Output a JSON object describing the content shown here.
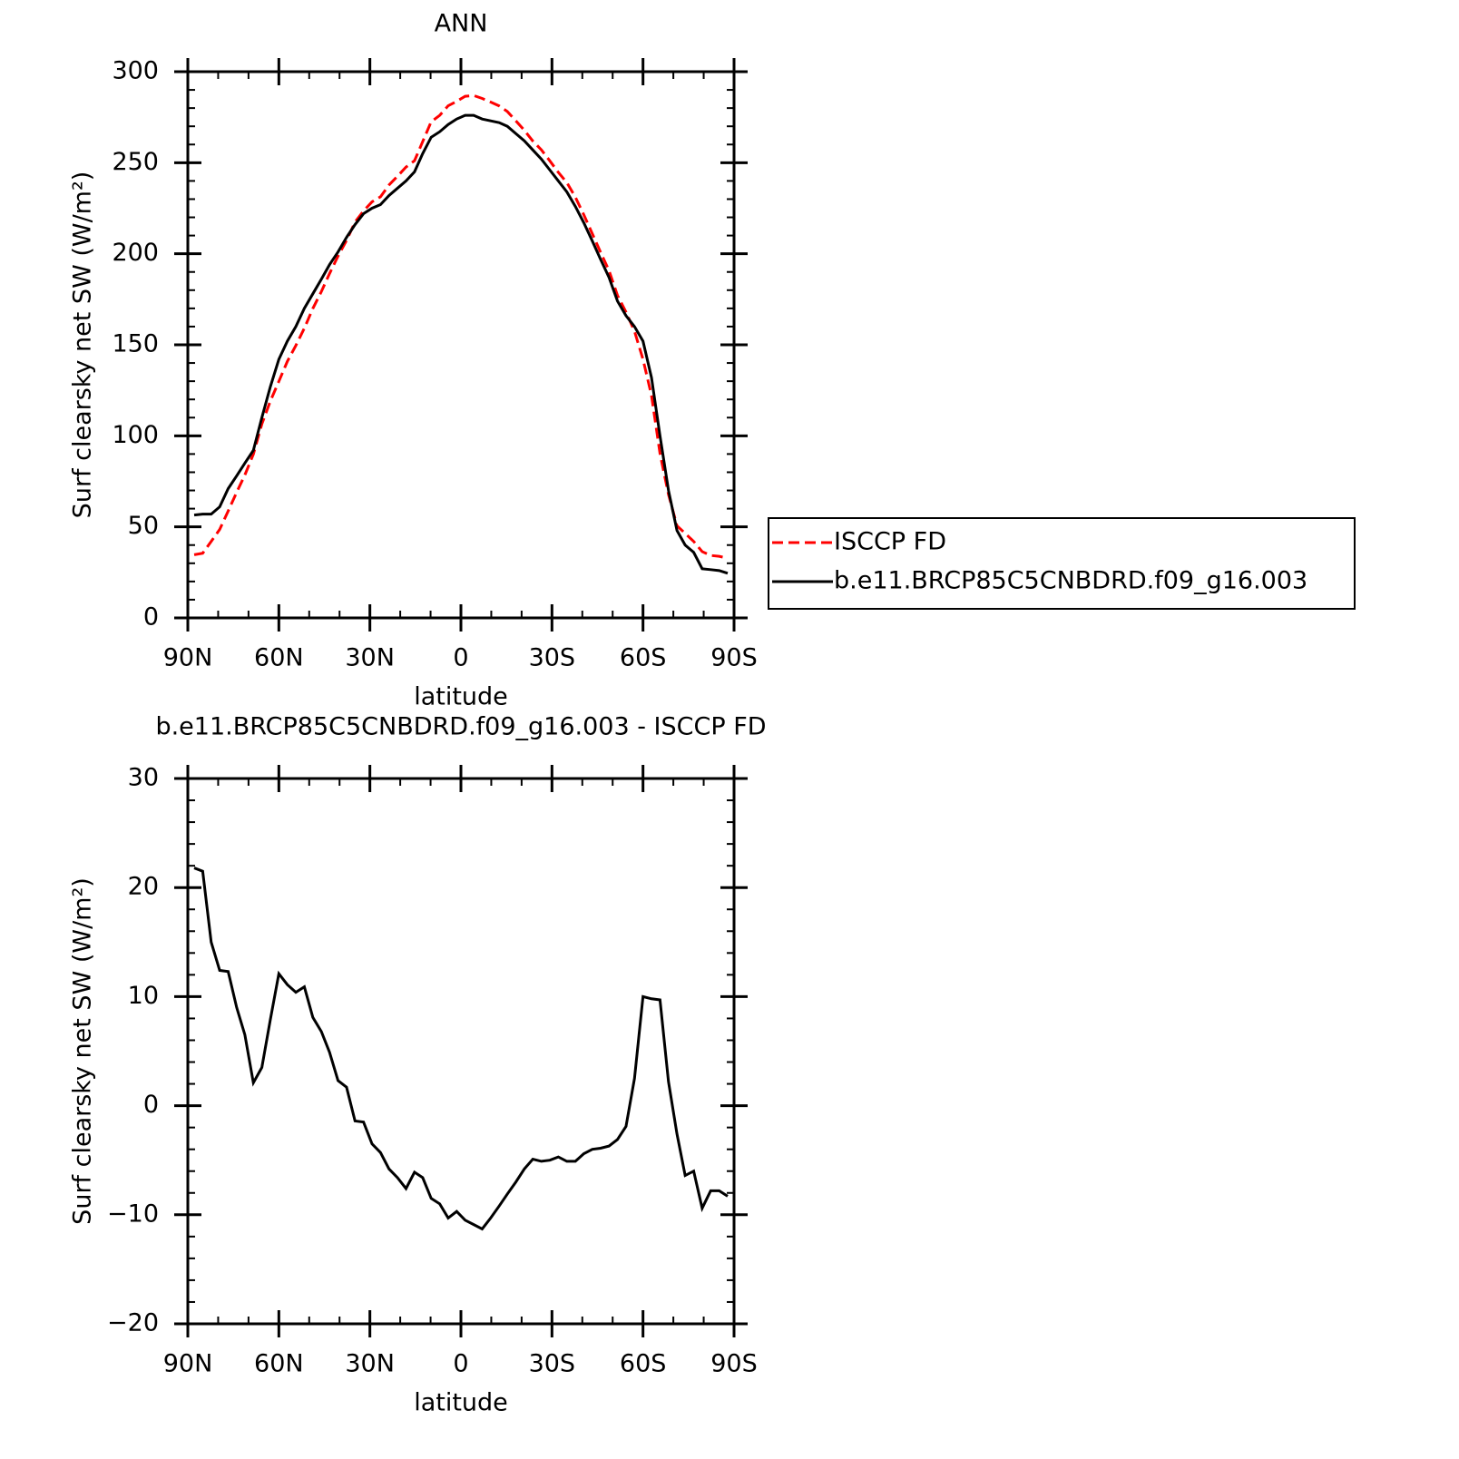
{
  "chart_data": [
    {
      "type": "line",
      "title": "ANN",
      "xlabel": "latitude",
      "ylabel": "Surf clearsky net SW (W/m²)",
      "x": [
        87.9,
        85.1,
        82.3,
        79.5,
        76.7,
        73.9,
        71.2,
        68.4,
        65.6,
        62.8,
        60.0,
        57.2,
        54.4,
        51.6,
        48.8,
        46.0,
        43.3,
        40.5,
        37.7,
        34.9,
        32.1,
        29.3,
        26.5,
        23.7,
        20.9,
        18.1,
        15.3,
        12.6,
        9.8,
        7.0,
        4.2,
        1.4,
        -1.4,
        -4.2,
        -7.0,
        -9.8,
        -12.6,
        -15.3,
        -18.1,
        -20.9,
        -23.7,
        -26.5,
        -29.3,
        -32.1,
        -34.9,
        -37.7,
        -40.5,
        -43.3,
        -46.0,
        -48.8,
        -51.6,
        -54.4,
        -57.2,
        -60.0,
        -62.8,
        -65.6,
        -68.4,
        -71.2,
        -73.9,
        -76.7,
        -79.5,
        -82.3,
        -85.1,
        -87.9
      ],
      "series": [
        {
          "name": "ISCCP FD",
          "color": "#ff0000",
          "line_style": "dashed",
          "values": [
            34.7,
            35.5,
            42,
            48.6,
            58.7,
            69,
            78.5,
            89.9,
            106.5,
            119.1,
            129.9,
            140.9,
            149.6,
            159.1,
            169.9,
            179.2,
            189.1,
            198.7,
            207.3,
            217.4,
            223.5,
            228.5,
            231.3,
            237.8,
            242.6,
            247.6,
            251.1,
            261.6,
            272.5,
            276,
            281.3,
            283.7,
            286.5,
            286.9,
            285.3,
            283.3,
            281.2,
            278.1,
            273,
            267.8,
            261.9,
            257.1,
            251,
            244.7,
            239.1,
            231.1,
            221.4,
            211,
            200.9,
            190.7,
            177.1,
            167.9,
            157.5,
            142,
            122.2,
            90.3,
            67.8,
            50.6,
            46.4,
            42,
            36.4,
            34.3,
            33.8,
            32.8
          ]
        },
        {
          "name": "b.e11.BRCP85C5CNBDRD.f09_g16.003",
          "color": "#000000",
          "line_style": "solid",
          "values": [
            56.5,
            57,
            57,
            61,
            71,
            78,
            85,
            92,
            110,
            127,
            142,
            152,
            160,
            170,
            178,
            186,
            194,
            201,
            209,
            216,
            222,
            225,
            227,
            232,
            236,
            240,
            245,
            255,
            264,
            267,
            271,
            274,
            276,
            276,
            274,
            273,
            272,
            270,
            266,
            262,
            257,
            252,
            246,
            240,
            234,
            226,
            217,
            207,
            197,
            187,
            174,
            166,
            160,
            152,
            132,
            100,
            70,
            48,
            40,
            36,
            27,
            26.5,
            26,
            24.5
          ]
        }
      ],
      "xlim": [
        90,
        -90
      ],
      "xticks": [
        {
          "value": 90,
          "label": "90N"
        },
        {
          "value": 60,
          "label": "60N"
        },
        {
          "value": 30,
          "label": "30N"
        },
        0,
        {
          "value": -30,
          "label": "30S"
        },
        {
          "value": -60,
          "label": "60S"
        },
        {
          "value": -90,
          "label": "90S"
        }
      ],
      "ylim": [
        0,
        300
      ],
      "yticks": [
        0,
        50,
        100,
        150,
        200,
        250,
        300
      ],
      "legend": "right"
    },
    {
      "type": "line",
      "title": "b.e11.BRCP85C5CNBDRD.f09_g16.003 - ISCCP FD",
      "xlabel": "latitude",
      "ylabel": "Surf clearsky net SW (W/m²)",
      "x": [
        87.9,
        85.1,
        82.3,
        79.5,
        76.7,
        73.9,
        71.2,
        68.4,
        65.6,
        62.8,
        60.0,
        57.2,
        54.4,
        51.6,
        48.8,
        46.0,
        43.3,
        40.5,
        37.7,
        34.9,
        32.1,
        29.3,
        26.5,
        23.7,
        20.9,
        18.1,
        15.3,
        12.6,
        9.8,
        7.0,
        4.2,
        1.4,
        -1.4,
        -4.2,
        -7.0,
        -9.8,
        -12.6,
        -15.3,
        -18.1,
        -20.9,
        -23.7,
        -26.5,
        -29.3,
        -32.1,
        -34.9,
        -37.7,
        -40.5,
        -43.3,
        -46.0,
        -48.8,
        -51.6,
        -54.4,
        -57.2,
        -60.0,
        -62.8,
        -65.6,
        -68.4,
        -71.2,
        -73.9,
        -76.7,
        -79.5,
        -82.3,
        -85.1,
        -87.9
      ],
      "series": [
        {
          "color": "#000000",
          "line_style": "solid",
          "values": [
            21.8,
            21.5,
            15,
            12.4,
            12.3,
            9,
            6.5,
            2.1,
            3.5,
            7.9,
            12.1,
            11.1,
            10.4,
            10.9,
            8.1,
            6.8,
            4.9,
            2.3,
            1.7,
            -1.4,
            -1.5,
            -3.5,
            -4.3,
            -5.8,
            -6.6,
            -7.6,
            -6.1,
            -6.6,
            -8.5,
            -9.0,
            -10.3,
            -9.7,
            -10.5,
            -10.9,
            -11.3,
            -10.3,
            -9.2,
            -8.1,
            -7.0,
            -5.8,
            -4.9,
            -5.1,
            -5.0,
            -4.7,
            -5.1,
            -5.1,
            -4.4,
            -4.0,
            -3.9,
            -3.7,
            -3.1,
            -1.9,
            2.5,
            10.0,
            9.8,
            9.7,
            2.2,
            -2.6,
            -6.4,
            -6.0,
            -9.4,
            -7.8,
            -7.8,
            -8.3
          ]
        }
      ],
      "xlim": [
        90,
        -90
      ],
      "xticks": [
        {
          "value": 90,
          "label": "90N"
        },
        {
          "value": 60,
          "label": "60N"
        },
        {
          "value": 30,
          "label": "30N"
        },
        0,
        {
          "value": -30,
          "label": "30S"
        },
        {
          "value": -60,
          "label": "60S"
        },
        {
          "value": -90,
          "label": "90S"
        }
      ],
      "ylim": [
        -20,
        30
      ],
      "yticks": [
        {
          "value": -20,
          "label": "−20"
        },
        {
          "value": -10,
          "label": "−10"
        },
        0,
        10,
        20,
        30
      ]
    }
  ]
}
